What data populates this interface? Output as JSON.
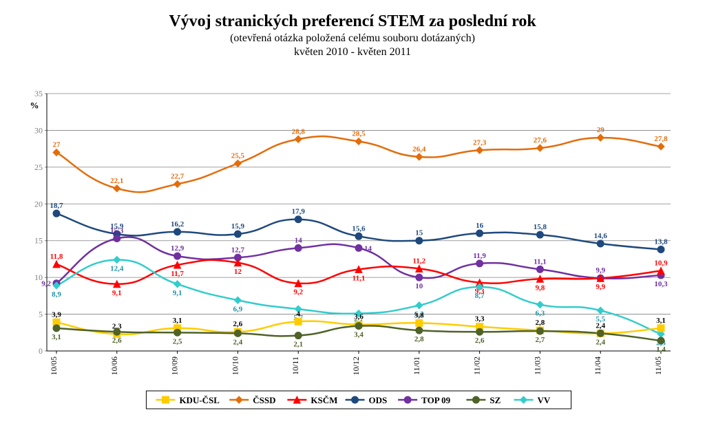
{
  "title": "Vývoj stranických preferencí STEM za poslední rok",
  "subtitle": "(otevřená otázka položená celému souboru dotázaných)",
  "date_range": "květen 2010 - květen 2011",
  "y_axis": {
    "label_percent": "%",
    "min": 0,
    "max": 35,
    "step": 5,
    "tick_color": "#808080",
    "grid_color": "#808080",
    "label_fontsize": 12
  },
  "x_axis": {
    "categories": [
      "10/05",
      "10/06",
      "10/09",
      "10/10",
      "10/11",
      "10/12",
      "11/01",
      "11/02",
      "11/03",
      "11/04",
      "11/05"
    ],
    "label_fontsize": 12,
    "label_color": "#000000"
  },
  "title_style": {
    "title_fontsize": 24,
    "subtitle_fontsize": 16,
    "date_fontsize": 16,
    "color": "#000000"
  },
  "chart": {
    "type": "line",
    "background_color": "#ffffff",
    "line_width": 2.5,
    "marker_size": 5,
    "label_fontsize": 11,
    "label_bold": true,
    "smoothing": 0.25
  },
  "legend": {
    "border_color": "#000000",
    "background": "#ffffff",
    "fontsize": 13,
    "order": [
      "KDU-ČSL",
      "ČSSD",
      "KSČM",
      "ODS",
      "TOP 09",
      "SZ",
      "VV"
    ]
  },
  "series": {
    "KDU-ČSL": {
      "label": "KDU-ČSL",
      "color": "#FFCC00",
      "label_color": "#000000",
      "marker": "square",
      "values": [
        3.9,
        2.3,
        3.1,
        2.6,
        4.0,
        3.6,
        3.8,
        3.3,
        2.8,
        2.4,
        3.1
      ],
      "label_fmt": [
        "3,9",
        "2,3",
        "3,1",
        "2,6",
        "4",
        "3,6",
        "3,8",
        "3,3",
        "2,8",
        "2,4",
        "3,1"
      ],
      "label_pos": [
        "above",
        "above",
        "above",
        "above",
        "above",
        "above",
        "above",
        "above",
        "above",
        "above",
        "above"
      ]
    },
    "ČSSD": {
      "label": "ČSSD",
      "color": "#E46C0A",
      "label_color": "#E46C0A",
      "marker": "diamond",
      "values": [
        27,
        22.1,
        22.7,
        25.5,
        28.8,
        28.5,
        26.4,
        27.3,
        27.6,
        29,
        27.8
      ],
      "label_fmt": [
        "27",
        "22,1",
        "22,7",
        "25,5",
        "28,8",
        "28,5",
        "26,4",
        "27,3",
        "27,6",
        "29",
        "27,8"
      ],
      "label_pos": [
        "above",
        "above",
        "above",
        "above",
        "above",
        "above",
        "above",
        "above",
        "above",
        "above",
        "above"
      ]
    },
    "KSČM": {
      "label": "KSČM",
      "color": "#FF0000",
      "label_color": "#FF0000",
      "marker": "triangle",
      "values": [
        11.8,
        9.1,
        11.7,
        12,
        9.2,
        11.1,
        11.2,
        9.3,
        9.8,
        9.9,
        10.9
      ],
      "label_fmt": [
        "11,8",
        "9,1",
        "11,7",
        "12",
        "9,2",
        "11,1",
        "11,2",
        "9,3",
        "9,8",
        "9,9",
        "10,9"
      ],
      "label_pos": [
        "above",
        "below",
        "below",
        "below",
        "below",
        "below",
        "above",
        "below",
        "below",
        "below",
        "above"
      ]
    },
    "ODS": {
      "label": "ODS",
      "color": "#1F497D",
      "label_color": "#1F497D",
      "marker": "circle",
      "values": [
        18.7,
        15.9,
        16.2,
        15.9,
        17.9,
        15.6,
        15,
        16,
        15.8,
        14.6,
        13.8
      ],
      "label_fmt": [
        "18,7",
        "15,9",
        "16,2",
        "15,9",
        "17,9",
        "15,6",
        "15",
        "16",
        "15,8",
        "14,6",
        "13,8"
      ],
      "label_pos": [
        "above",
        "above",
        "above",
        "above",
        "above",
        "above",
        "above",
        "above",
        "above",
        "above",
        "above"
      ]
    },
    "TOP 09": {
      "label": "TOP 09",
      "color": "#7030A0",
      "label_color": "#7030A0",
      "marker": "circle",
      "values": [
        9.2,
        15.3,
        12.9,
        12.7,
        14,
        14,
        10,
        11.9,
        11.1,
        9.9,
        10.3
      ],
      "label_fmt": [
        "9,2",
        "15,3",
        "12,9",
        "12,7",
        "14",
        "14",
        "10",
        "11,9",
        "11,1",
        "9,9",
        "10,3"
      ],
      "label_pos": [
        "left",
        "above",
        "above",
        "above",
        "above",
        "right",
        "below",
        "above",
        "above",
        "above",
        "below"
      ]
    },
    "SZ": {
      "label": "SZ",
      "color": "#4F6228",
      "label_color": "#4F6228",
      "marker": "circle",
      "values": [
        3.1,
        2.6,
        2.5,
        2.4,
        2.1,
        3.4,
        2.8,
        2.6,
        2.7,
        2.4,
        1.4
      ],
      "label_fmt": [
        "3,1",
        "2,6",
        "2,5",
        "2,4",
        "2,1",
        "3,4",
        "2,8",
        "2,6",
        "2,7",
        "2,4",
        "1,4"
      ],
      "label_pos": [
        "below",
        "below",
        "below",
        "below",
        "below",
        "below",
        "below",
        "below",
        "below",
        "below",
        "below"
      ]
    },
    "VV": {
      "label": "VV",
      "color": "#33CCCC",
      "label_color": "#1F93A7",
      "marker": "diamond",
      "values": [
        8.9,
        12.4,
        9.1,
        6.9,
        5.7,
        5.1,
        6.2,
        8.7,
        6.3,
        5.5,
        2.3
      ],
      "label_fmt": [
        "8,9",
        "12,4",
        "9,1",
        "6,9",
        "5,7",
        "5,1",
        "6,2",
        "8,7",
        "6,3",
        "5,5",
        "2,3"
      ],
      "label_pos": [
        "below",
        "below",
        "below",
        "below",
        "below",
        "below",
        "below",
        "below",
        "below",
        "below",
        "below"
      ]
    }
  }
}
